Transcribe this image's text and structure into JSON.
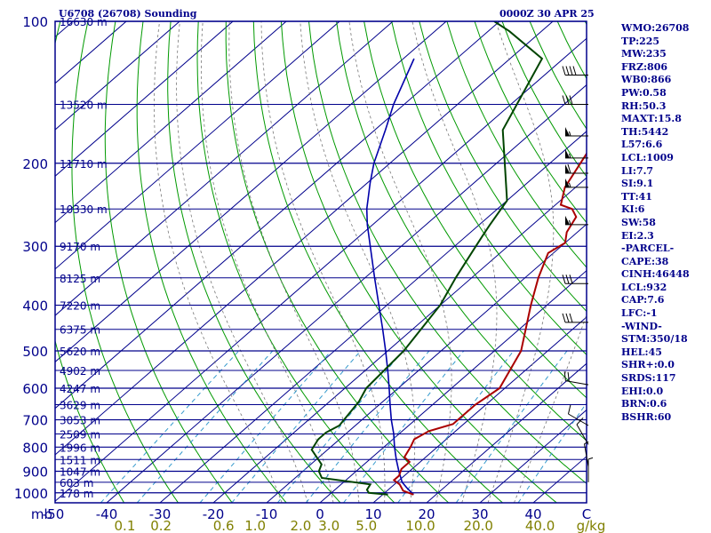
{
  "header": {
    "station": "U6708 (26708) Sounding",
    "time": "0000Z 30 APR 25"
  },
  "stats": [
    "WMO:26708",
    "TP:225",
    "MW:235",
    "FRZ:806",
    "WB0:866",
    "PW:0.58",
    "RH:50.3",
    "MAXT:15.8",
    "TH:5442",
    "L57:6.6",
    "LCL:1009",
    "LI:7.7",
    "SI:9.1",
    "TT:41",
    "KI:6",
    "SW:58",
    "EI:2.3",
    "-PARCEL-",
    "CAPE:38",
    "CINH:46448",
    "LCL:932",
    "CAP:7.6",
    "LFC:-1",
    "-WIND-",
    "STM:350/18",
    "HEL:45",
    "SHR+:0.0",
    "SRDS:117",
    "EHI:0.0",
    "BRN:0.6",
    "BSHR:60"
  ],
  "colors": {
    "frame": "#00008b",
    "isobar": "#00008b",
    "isotherm": "#00008b",
    "dry_adiabat": "#009900",
    "moist_adiabat": "#777777",
    "mixing_ratio": "#3399cc",
    "temperature": "#aa0000",
    "dewpoint": "#004400",
    "parcel": "#0000aa",
    "mixing_ratio_labels": "#808000"
  },
  "chart_data": {
    "type": "skew-t log-p",
    "pressure_axis": {
      "unit": "mb",
      "ticks": [
        100,
        200,
        300,
        400,
        500,
        600,
        700,
        800,
        900,
        1000
      ],
      "range": [
        100,
        1000
      ]
    },
    "temperature_axis": {
      "unit": "C",
      "ticks": [
        -50,
        -40,
        -30,
        -20,
        -10,
        0,
        10,
        20,
        30,
        40
      ],
      "range": [
        -50,
        50
      ]
    },
    "height_labels": [
      {
        "p": 100,
        "label": "16630 m"
      },
      {
        "p": 150,
        "label": "13520 m"
      },
      {
        "p": 200,
        "label": "11710 m"
      },
      {
        "p": 250,
        "label": "10330 m"
      },
      {
        "p": 300,
        "label": "9170 m"
      },
      {
        "p": 350,
        "label": "8125 m"
      },
      {
        "p": 400,
        "label": "7220 m"
      },
      {
        "p": 450,
        "label": "6375 m"
      },
      {
        "p": 500,
        "label": "5620 m"
      },
      {
        "p": 550,
        "label": "4902 m"
      },
      {
        "p": 600,
        "label": "4247 m"
      },
      {
        "p": 650,
        "label": "3629 m"
      },
      {
        "p": 700,
        "label": "3053 m"
      },
      {
        "p": 750,
        "label": "2509 m"
      },
      {
        "p": 800,
        "label": "1996 m"
      },
      {
        "p": 850,
        "label": "1511 m"
      },
      {
        "p": 900,
        "label": "1047 m"
      },
      {
        "p": 950,
        "label": "603 m"
      },
      {
        "p": 1000,
        "label": "178 m"
      }
    ],
    "mixing_ratio_axis": {
      "unit": "g/kg",
      "labels": [
        "0.1",
        "0.2",
        "0.6",
        "1.0",
        "2.0",
        "3.0",
        "5.0",
        "10.0",
        "20.0",
        "40.0"
      ]
    },
    "temperature_profile": [
      [
        1009,
        15.8
      ],
      [
        990,
        13.0
      ],
      [
        960,
        11.0
      ],
      [
        940,
        9.0
      ],
      [
        920,
        9.0
      ],
      [
        890,
        8.0
      ],
      [
        860,
        8.0
      ],
      [
        840,
        6.0
      ],
      [
        800,
        5.0
      ],
      [
        770,
        4.0
      ],
      [
        740,
        5.0
      ],
      [
        715,
        8.0
      ],
      [
        650,
        8.0
      ],
      [
        600,
        9.0
      ],
      [
        500,
        5.0
      ],
      [
        400,
        -3.0
      ],
      [
        350,
        -7.5
      ],
      [
        310,
        -11.0
      ],
      [
        295,
        -10.0
      ],
      [
        280,
        -12.0
      ],
      [
        260,
        -13.5
      ],
      [
        250,
        -16.0
      ],
      [
        245,
        -19.0
      ],
      [
        225,
        -22.0
      ],
      [
        165,
        -28.0
      ],
      [
        130,
        -32.0
      ],
      [
        115,
        -38.0
      ],
      [
        100,
        -44.0
      ]
    ],
    "dewpoint_profile": [
      [
        1009,
        11.0
      ],
      [
        1000,
        7.0
      ],
      [
        985,
        6.0
      ],
      [
        960,
        5.5
      ],
      [
        930,
        -5.0
      ],
      [
        900,
        -7.0
      ],
      [
        870,
        -8.0
      ],
      [
        810,
        -13.0
      ],
      [
        770,
        -14.0
      ],
      [
        745,
        -14.0
      ],
      [
        720,
        -13.0
      ],
      [
        640,
        -14.5
      ],
      [
        600,
        -16.0
      ],
      [
        500,
        -17.0
      ],
      [
        400,
        -20.0
      ],
      [
        350,
        -23.0
      ],
      [
        300,
        -26.0
      ],
      [
        285,
        -27.0
      ],
      [
        270,
        -28.0
      ],
      [
        240,
        -30.0
      ],
      [
        225,
        -33.0
      ],
      [
        170,
        -46.0
      ],
      [
        120,
        -54.0
      ],
      [
        105,
        -66.0
      ],
      [
        100,
        -71.0
      ]
    ],
    "parcel_profile": [
      [
        1009,
        15.8
      ],
      [
        975,
        13.0
      ],
      [
        950,
        11.0
      ],
      [
        900,
        8.0
      ],
      [
        850,
        5.0
      ],
      [
        800,
        2.0
      ],
      [
        750,
        -1.0
      ],
      [
        700,
        -4.5
      ],
      [
        650,
        -8.0
      ],
      [
        600,
        -11.7
      ],
      [
        550,
        -15.8
      ],
      [
        500,
        -20.4
      ],
      [
        450,
        -25.6
      ],
      [
        400,
        -31.5
      ],
      [
        350,
        -38.2
      ],
      [
        300,
        -45.8
      ],
      [
        270,
        -51.0
      ],
      [
        250,
        -54.5
      ],
      [
        220,
        -59.5
      ],
      [
        200,
        -63.0
      ],
      [
        170,
        -68.0
      ],
      [
        150,
        -72.0
      ],
      [
        120,
        -78.0
      ]
    ],
    "wind_barbs": [
      {
        "p": 130,
        "dir": 270,
        "speed_kt": 40
      },
      {
        "p": 150,
        "dir": 270,
        "speed_kt": 30
      },
      {
        "p": 175,
        "dir": 270,
        "speed_kt": 55
      },
      {
        "p": 195,
        "dir": 270,
        "speed_kt": 55
      },
      {
        "p": 210,
        "dir": 270,
        "speed_kt": 60
      },
      {
        "p": 225,
        "dir": 270,
        "speed_kt": 55
      },
      {
        "p": 270,
        "dir": 270,
        "speed_kt": 55
      },
      {
        "p": 360,
        "dir": 270,
        "speed_kt": 30
      },
      {
        "p": 435,
        "dir": 270,
        "speed_kt": 30
      },
      {
        "p": 590,
        "dir": 280,
        "speed_kt": 20
      },
      {
        "p": 720,
        "dir": 300,
        "speed_kt": 10
      },
      {
        "p": 790,
        "dir": 330,
        "speed_kt": 10
      },
      {
        "p": 880,
        "dir": 350,
        "speed_kt": 5
      },
      {
        "p": 950,
        "dir": 0,
        "speed_kt": 5
      }
    ]
  }
}
